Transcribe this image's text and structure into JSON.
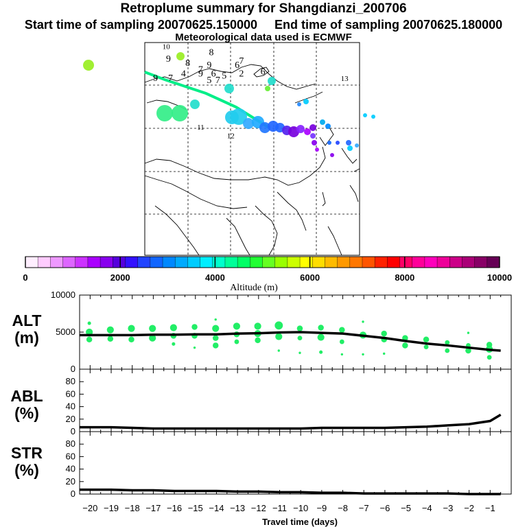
{
  "header": {
    "title": "Retroplume summary for Shangdianzi_200706",
    "start_label": "Start time of sampling 20070625.150000",
    "end_label": "End time of sampling 20070625.180000",
    "met_label": "Meteorological data used is ECMWF"
  },
  "colors": {
    "plume_green": "#22ee66",
    "line_black": "#000000",
    "trajectory_green": "#00ee88"
  },
  "colorbar": {
    "ticks": [
      "0",
      "2000",
      "4000",
      "6000",
      "8000",
      "10000"
    ],
    "tick_values": [
      0,
      2000,
      4000,
      6000,
      8000,
      10000
    ],
    "label": "Altitude (m)",
    "colors": [
      "#ffeeff",
      "#ffccff",
      "#ee99ff",
      "#dd66ff",
      "#cc33ff",
      "#aa00ff",
      "#8800ee",
      "#5500dd",
      "#3311ff",
      "#2244ff",
      "#1166ff",
      "#0088ff",
      "#00aaff",
      "#00ccff",
      "#00eeff",
      "#00ffcc",
      "#00ff99",
      "#00ff66",
      "#22ff33",
      "#66ff22",
      "#99ff00",
      "#ccff00",
      "#ffff00",
      "#ffdd00",
      "#ffbb00",
      "#ff9900",
      "#ff7700",
      "#ff5500",
      "#ff2200",
      "#ff0000",
      "#ff0066",
      "#ff0099",
      "#ff00bb",
      "#ee0099",
      "#cc0088",
      "#aa0077",
      "#880066",
      "#660055"
    ]
  },
  "map_labels": [
    {
      "t": "10",
      "lon": 0.1,
      "lat": 0.03
    },
    {
      "t": "8",
      "lon": 0.31,
      "lat": 0.06
    },
    {
      "t": "9",
      "lon": 0.11,
      "lat": 0.09
    },
    {
      "t": "8",
      "lon": 0.2,
      "lat": 0.11
    },
    {
      "t": "9",
      "lon": 0.3,
      "lat": 0.12
    },
    {
      "t": "7",
      "lon": 0.45,
      "lat": 0.1
    },
    {
      "t": "6",
      "lon": 0.43,
      "lat": 0.12
    },
    {
      "t": "7",
      "lon": 0.26,
      "lat": 0.14
    },
    {
      "t": "9",
      "lon": 0.26,
      "lat": 0.16
    },
    {
      "t": "6",
      "lon": 0.32,
      "lat": 0.16
    },
    {
      "t": "5",
      "lon": 0.37,
      "lat": 0.17
    },
    {
      "t": "2",
      "lon": 0.45,
      "lat": 0.16
    },
    {
      "t": "4",
      "lon": 0.18,
      "lat": 0.16
    },
    {
      "t": "9",
      "lon": 0.05,
      "lat": 0.18
    },
    {
      "t": "7",
      "lon": 0.12,
      "lat": 0.18
    },
    {
      "t": "5",
      "lon": 0.3,
      "lat": 0.19
    },
    {
      "t": "7",
      "lon": 0.34,
      "lat": 0.19
    },
    {
      "t": "6",
      "lon": 0.55,
      "lat": 0.15
    },
    {
      "t": "13",
      "lon": 0.93,
      "lat": 0.18
    },
    {
      "t": "11",
      "lon": 0.26,
      "lat": 0.41
    },
    {
      "t": "12",
      "lon": 0.4,
      "lat": 0.45
    }
  ],
  "y_labels": {
    "alt": [
      "ALT",
      "(m)"
    ],
    "abl": [
      "ABL",
      "(%)"
    ],
    "str": [
      "STR",
      "(%)"
    ]
  },
  "chart_data": [
    {
      "type": "scatter",
      "title": "ALT (m)",
      "ylim": [
        0,
        10000
      ],
      "yticks": [
        10000,
        5000,
        0
      ],
      "ytick_labels": [
        "10000",
        "5000",
        "0"
      ],
      "x": [
        -20,
        -19,
        -18,
        -17,
        -16,
        -15,
        -14,
        -13,
        -12,
        -11,
        -10,
        -9,
        -8,
        -7,
        -6,
        -5,
        -4,
        -3,
        -2,
        -1
      ],
      "series": [
        {
          "name": "mean altitude",
          "x": [
            -20.5,
            -20,
            -19,
            -18,
            -17,
            -16,
            -15,
            -14,
            -13,
            -12,
            -11,
            -10,
            -9,
            -8,
            -7,
            -6,
            -5,
            -4,
            -3,
            -2,
            -1,
            -0.5
          ],
          "values": [
            4600,
            4600,
            4600,
            4600,
            4650,
            4650,
            4700,
            4700,
            4800,
            4850,
            4950,
            5000,
            4900,
            4800,
            4500,
            4200,
            3800,
            3450,
            3200,
            2900,
            2600,
            2500
          ]
        },
        {
          "name": "plume particles",
          "points": [
            [
              -20.3,
              6200,
              3
            ],
            [
              -20.3,
              5000,
              6
            ],
            [
              -20.3,
              4000,
              5
            ],
            [
              -19.3,
              5300,
              6
            ],
            [
              -19.3,
              4100,
              5
            ],
            [
              -18.3,
              5500,
              6
            ],
            [
              -18.3,
              4000,
              5
            ],
            [
              -17.3,
              5500,
              6
            ],
            [
              -17.3,
              4200,
              6
            ],
            [
              -16.3,
              5600,
              6
            ],
            [
              -16.3,
              4500,
              5
            ],
            [
              -16.3,
              3400,
              3
            ],
            [
              -15.3,
              5700,
              5
            ],
            [
              -15.3,
              4500,
              5
            ],
            [
              -15.3,
              2900,
              2
            ],
            [
              -14.3,
              6700,
              2
            ],
            [
              -14.3,
              5500,
              6
            ],
            [
              -14.3,
              4200,
              5
            ],
            [
              -14.3,
              3200,
              5
            ],
            [
              -13.3,
              5800,
              6
            ],
            [
              -13.3,
              4700,
              5
            ],
            [
              -13.3,
              3700,
              4
            ],
            [
              -12.3,
              5800,
              6
            ],
            [
              -12.3,
              4800,
              6
            ],
            [
              -12.3,
              3900,
              5
            ],
            [
              -11.3,
              5900,
              7
            ],
            [
              -11.3,
              4400,
              6
            ],
            [
              -11.3,
              2500,
              2
            ],
            [
              -10.3,
              5500,
              5
            ],
            [
              -10.3,
              4200,
              4
            ],
            [
              -10.3,
              2200,
              2
            ],
            [
              -9.3,
              5600,
              5
            ],
            [
              -9.3,
              4300,
              6
            ],
            [
              -9.3,
              2300,
              3
            ],
            [
              -8.3,
              5300,
              5
            ],
            [
              -8.3,
              3700,
              4
            ],
            [
              -8.3,
              2000,
              2
            ],
            [
              -7.3,
              6400,
              2
            ],
            [
              -7.3,
              4600,
              6
            ],
            [
              -7.3,
              2000,
              2
            ],
            [
              -6.3,
              4800,
              5
            ],
            [
              -6.3,
              4000,
              5
            ],
            [
              -6.3,
              2100,
              2
            ],
            [
              -5.3,
              4200,
              5
            ],
            [
              -5.3,
              3200,
              5
            ],
            [
              -4.3,
              4000,
              5
            ],
            [
              -4.3,
              3000,
              4
            ],
            [
              -3.3,
              3600,
              4
            ],
            [
              -3.3,
              2500,
              4
            ],
            [
              -2.3,
              4900,
              2
            ],
            [
              -2.3,
              3200,
              4
            ],
            [
              -2.3,
              2500,
              5
            ],
            [
              -1.3,
              3300,
              5
            ],
            [
              -1.3,
              2700,
              6
            ],
            [
              -1.3,
              1600,
              4
            ]
          ]
        }
      ]
    },
    {
      "type": "line",
      "title": "ABL (%)",
      "ylim": [
        0,
        100
      ],
      "yticks": [
        80,
        60,
        40,
        20,
        0
      ],
      "ytick_labels": [
        "80",
        "60",
        "40",
        "20",
        "0"
      ],
      "x": [
        -20.5,
        -19,
        -18,
        -17,
        -16,
        -15,
        -14,
        -13,
        -12,
        -11,
        -10,
        -9,
        -8,
        -7,
        -6,
        -5,
        -4,
        -3,
        -2,
        -1,
        -0.5
      ],
      "values": [
        7,
        7,
        6,
        5,
        5,
        5,
        5,
        5,
        5,
        5,
        5,
        6,
        6,
        6,
        6,
        7,
        8,
        10,
        12,
        17,
        27
      ]
    },
    {
      "type": "line",
      "title": "STR (%)",
      "ylim": [
        0,
        100
      ],
      "yticks": [
        80,
        60,
        40,
        20,
        0
      ],
      "ytick_labels": [
        "80",
        "60",
        "40",
        "20",
        "0"
      ],
      "x": [
        -20.5,
        -19,
        -18,
        -17,
        -16,
        -15,
        -14,
        -13,
        -12,
        -11,
        -10,
        -9,
        -8,
        -7,
        -6,
        -5,
        -4,
        -3,
        -2,
        -1,
        -0.5
      ],
      "values": [
        7,
        7,
        6,
        6,
        5,
        5,
        5,
        4,
        4,
        3,
        3,
        2,
        2,
        1,
        1,
        1,
        1,
        1,
        0,
        0,
        0
      ],
      "xlabel": "Travel time (days)",
      "xtick_labels": [
        "−20",
        "−19",
        "−18",
        "−17",
        "−16",
        "−15",
        "−14",
        "−13",
        "−12",
        "−11",
        "−10",
        "−9",
        "−8",
        "−7",
        "−6",
        "−5",
        "−4",
        "−3",
        "−2",
        "−1"
      ]
    }
  ]
}
